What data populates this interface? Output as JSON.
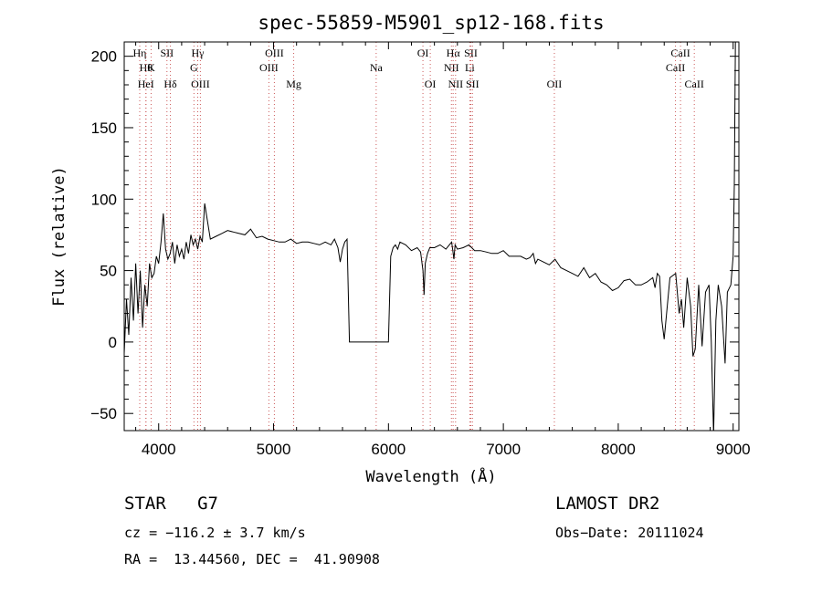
{
  "chart_data": {
    "type": "line",
    "title": "spec-55859-M5901_sp12-168.fits",
    "xlabel": "Wavelength (Å)",
    "ylabel": "Flux (relative)",
    "xlim": [
      3700,
      9050
    ],
    "ylim": [
      -62,
      210
    ],
    "xticks": [
      4000,
      5000,
      6000,
      7000,
      8000,
      9000
    ],
    "yticks": [
      -50,
      0,
      50,
      100,
      150,
      200
    ],
    "grid": false,
    "series": [
      {
        "color": "#000000",
        "x": [
          3700,
          3720,
          3740,
          3760,
          3780,
          3800,
          3820,
          3840,
          3860,
          3880,
          3900,
          3920,
          3940,
          3960,
          3980,
          4000,
          4020,
          4040,
          4060,
          4080,
          4100,
          4120,
          4140,
          4160,
          4180,
          4200,
          4220,
          4240,
          4260,
          4280,
          4300,
          4320,
          4340,
          4360,
          4380,
          4400,
          4450,
          4500,
          4550,
          4600,
          4650,
          4700,
          4750,
          4800,
          4850,
          4900,
          4950,
          5000,
          5050,
          5100,
          5150,
          5200,
          5250,
          5300,
          5350,
          5400,
          5450,
          5500,
          5530,
          5560,
          5580,
          5600,
          5620,
          5640,
          5660,
          5700,
          5800,
          5900,
          6000,
          6020,
          6040,
          6060,
          6080,
          6100,
          6150,
          6200,
          6250,
          6280,
          6300,
          6310,
          6320,
          6340,
          6360,
          6400,
          6450,
          6500,
          6550,
          6560,
          6570,
          6580,
          6600,
          6650,
          6700,
          6750,
          6800,
          6850,
          6900,
          6950,
          7000,
          7050,
          7100,
          7150,
          7200,
          7230,
          7260,
          7280,
          7300,
          7350,
          7400,
          7450,
          7500,
          7550,
          7600,
          7650,
          7700,
          7750,
          7800,
          7850,
          7900,
          7950,
          8000,
          8050,
          8100,
          8150,
          8200,
          8250,
          8300,
          8320,
          8340,
          8360,
          8380,
          8400,
          8450,
          8500,
          8530,
          8550,
          8570,
          8600,
          8630,
          8650,
          8670,
          8700,
          8730,
          8760,
          8790,
          8810,
          8830,
          8850,
          8870,
          8900,
          8930,
          8950,
          8980,
          9000,
          9010,
          9020
        ],
        "y": [
          -8,
          30,
          5,
          45,
          15,
          55,
          20,
          50,
          10,
          40,
          25,
          55,
          45,
          48,
          60,
          55,
          70,
          90,
          65,
          58,
          62,
          70,
          55,
          68,
          60,
          65,
          58,
          70,
          62,
          75,
          68,
          72,
          65,
          74,
          70,
          97,
          72,
          74,
          76,
          78,
          77,
          76,
          75,
          79,
          73,
          74,
          72,
          71,
          70,
          70,
          72,
          69,
          70,
          70,
          69,
          68,
          70,
          68,
          72,
          66,
          56,
          65,
          70,
          72,
          0,
          0,
          0,
          0,
          0,
          60,
          66,
          68,
          65,
          70,
          68,
          64,
          66,
          63,
          50,
          33,
          55,
          62,
          66,
          66,
          68,
          65,
          70,
          64,
          58,
          68,
          65,
          66,
          68,
          64,
          64,
          63,
          62,
          62,
          64,
          60,
          60,
          60,
          58,
          59,
          62,
          55,
          58,
          56,
          54,
          58,
          52,
          50,
          48,
          46,
          52,
          45,
          48,
          42,
          40,
          36,
          38,
          43,
          44,
          40,
          40,
          42,
          45,
          38,
          48,
          46,
          15,
          2,
          45,
          48,
          20,
          30,
          10,
          45,
          25,
          -10,
          -5,
          40,
          -3,
          35,
          40,
          0,
          -65,
          15,
          40,
          25,
          -15,
          35,
          40,
          60,
          110,
          210
        ]
      }
    ],
    "line_markers": [
      {
        "wl": 3835,
        "label": "Hη",
        "row": 1
      },
      {
        "wl": 3889,
        "label": "Hθ",
        "row": 2
      },
      {
        "wl": 3889,
        "label": "HeI",
        "row": 3
      },
      {
        "wl": 3934,
        "label": "K",
        "row": 2
      },
      {
        "wl": 4072,
        "label": "SII",
        "row": 1
      },
      {
        "wl": 4102,
        "label": "Hδ",
        "row": 3
      },
      {
        "wl": 4307,
        "label": "G",
        "row": 2
      },
      {
        "wl": 4340,
        "label": "Hγ",
        "row": 1
      },
      {
        "wl": 4363,
        "label": "OIII",
        "row": 3
      },
      {
        "wl": 4959,
        "label": "OIII",
        "row": 2
      },
      {
        "wl": 5007,
        "label": "OIII",
        "row": 1
      },
      {
        "wl": 5175,
        "label": "Mg",
        "row": 3
      },
      {
        "wl": 5893,
        "label": "Na",
        "row": 2
      },
      {
        "wl": 6300,
        "label": "OI",
        "row": 1
      },
      {
        "wl": 6364,
        "label": "OI",
        "row": 3
      },
      {
        "wl": 6548,
        "label": "NII",
        "row": 2
      },
      {
        "wl": 6563,
        "label": "Hα",
        "row": 1
      },
      {
        "wl": 6584,
        "label": "NII",
        "row": 3
      },
      {
        "wl": 6708,
        "label": "Li",
        "row": 2
      },
      {
        "wl": 6717,
        "label": "SII",
        "row": 1
      },
      {
        "wl": 6731,
        "label": "SII",
        "row": 3
      },
      {
        "wl": 7444,
        "label": "OII",
        "row": 3
      },
      {
        "wl": 8498,
        "label": "CaII",
        "row": 2
      },
      {
        "wl": 8542,
        "label": "CaII",
        "row": 1
      },
      {
        "wl": 8662,
        "label": "CaII",
        "row": 3
      }
    ]
  },
  "info": {
    "class_text": "STAR   G7",
    "survey": "LAMOST DR2",
    "cz": "cz = −116.2 ± 3.7 km/s",
    "obs_date": "Obs−Date: 20111024",
    "radec": "RA =  13.44560, DEC =  41.90908"
  }
}
